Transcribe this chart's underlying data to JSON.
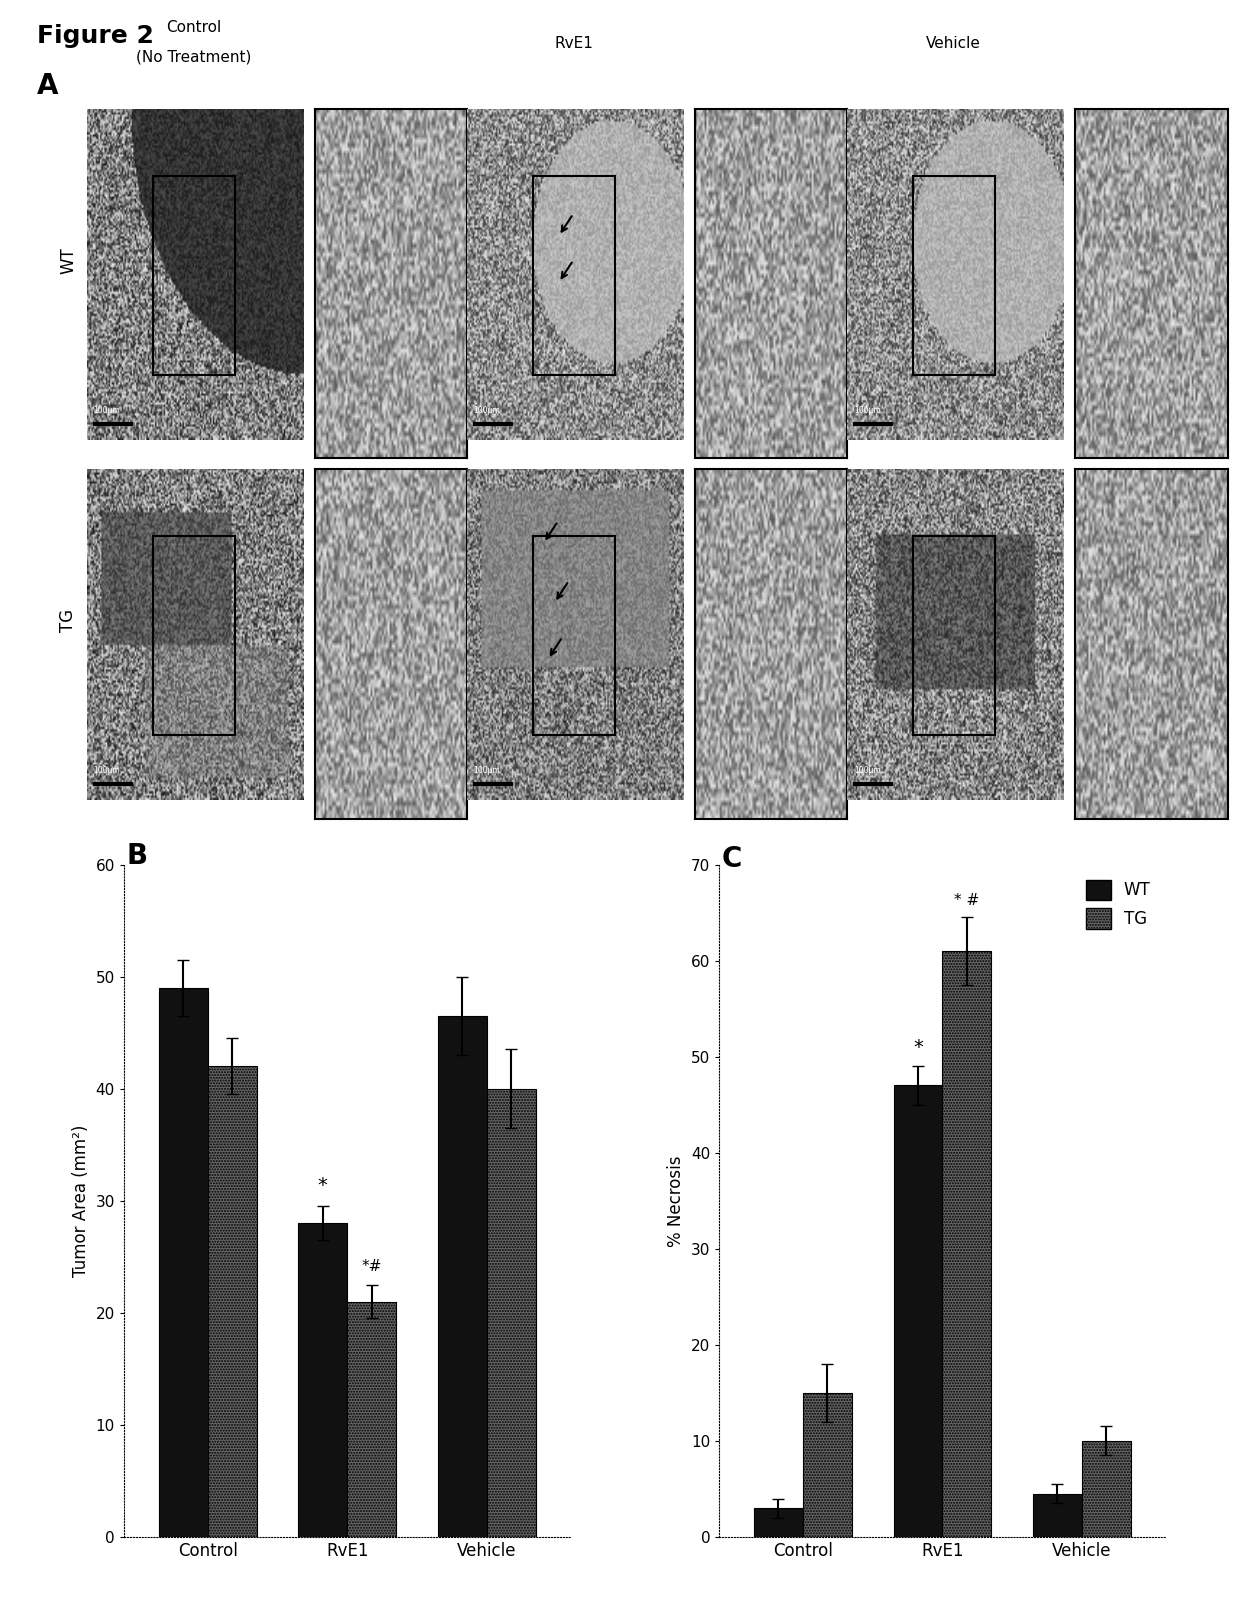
{
  "figure_title": "Figure 2",
  "panel_A_label": "A",
  "panel_B_label": "B",
  "panel_C_label": "C",
  "col_labels_line1": [
    "Control",
    "RvE1",
    "Vehicle"
  ],
  "col_labels_line2": [
    "(No Treatment)",
    "",
    ""
  ],
  "row_labels": [
    "WT",
    "TG"
  ],
  "bar_B_categories": [
    "Control",
    "RvE1",
    "Vehicle"
  ],
  "bar_B_WT": [
    49.0,
    28.0,
    46.5
  ],
  "bar_B_TG": [
    42.0,
    21.0,
    40.0
  ],
  "bar_B_WT_err": [
    2.5,
    1.5,
    3.5
  ],
  "bar_B_TG_err": [
    2.5,
    1.5,
    3.5
  ],
  "bar_B_ylabel": "Tumor Area (mm²)",
  "bar_B_ylim": [
    0,
    60
  ],
  "bar_B_yticks": [
    0,
    10,
    20,
    30,
    40,
    50,
    60
  ],
  "bar_C_categories": [
    "Control",
    "RvE1",
    "Vehicle"
  ],
  "bar_C_WT": [
    3.0,
    47.0,
    4.5
  ],
  "bar_C_TG": [
    15.0,
    61.0,
    10.0
  ],
  "bar_C_WT_err": [
    1.0,
    2.0,
    1.0
  ],
  "bar_C_TG_err": [
    3.0,
    3.5,
    1.5
  ],
  "bar_C_ylabel": "% Necrosis",
  "bar_C_ylim": [
    0,
    70
  ],
  "bar_C_yticks": [
    0,
    10,
    20,
    30,
    40,
    50,
    60,
    70
  ],
  "WT_color": "#111111",
  "TG_color": "#666666",
  "bar_width": 0.35,
  "background_color": "#ffffff",
  "scale_text": "100μm"
}
